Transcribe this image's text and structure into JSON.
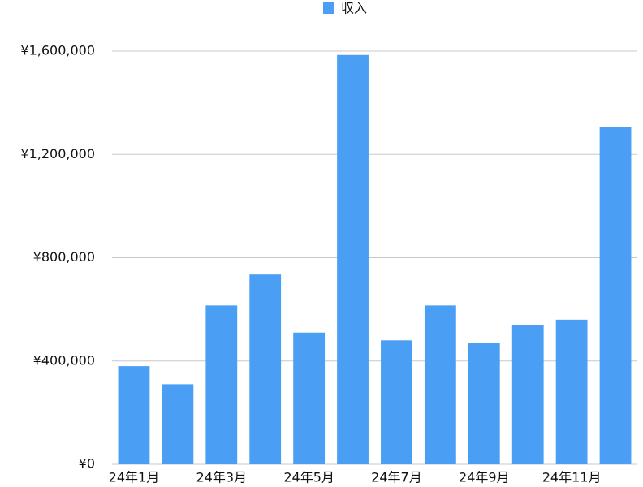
{
  "chart_data": {
    "type": "bar",
    "legend": "収入",
    "categories": [
      "24年1月",
      null,
      "24年3月",
      null,
      "24年5月",
      null,
      "24年7月",
      null,
      "24年9月",
      null,
      "24年11月",
      null
    ],
    "series": [
      {
        "name": "収入",
        "color": "#4a9ff5",
        "values": [
          380000,
          310000,
          615000,
          735000,
          510000,
          1585000,
          480000,
          615000,
          470000,
          540000,
          560000,
          1305000
        ]
      }
    ],
    "ylim": [
      0,
      1600000
    ],
    "yticks": [
      {
        "value": 0,
        "label": "¥0"
      },
      {
        "value": 400000,
        "label": "¥400,000"
      },
      {
        "value": 800000,
        "label": "¥800,000"
      },
      {
        "value": 1200000,
        "label": "¥1,200,000"
      },
      {
        "value": 1600000,
        "label": "¥1,600,000"
      }
    ],
    "grid": true
  }
}
